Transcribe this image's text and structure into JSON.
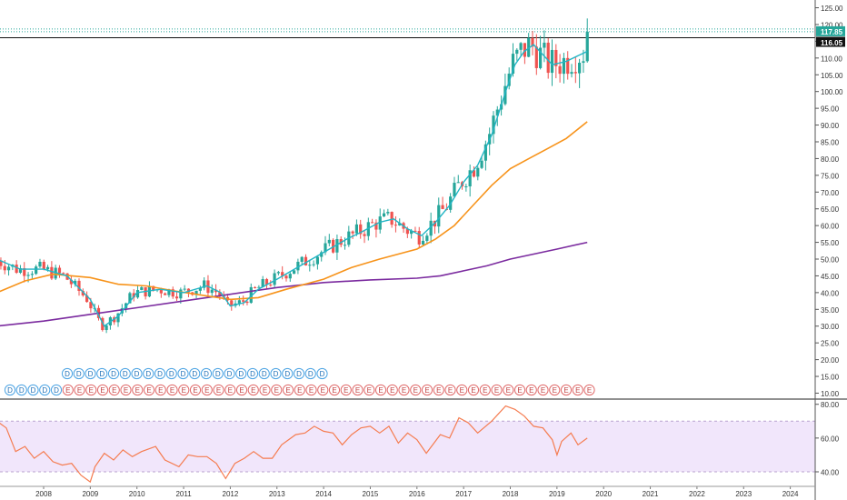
{
  "chart_data": {
    "type": "candlestick",
    "price_axis": {
      "ticks": [
        "10.00",
        "15.00",
        "20.00",
        "25.00",
        "30.00",
        "35.00",
        "40.00",
        "45.00",
        "50.00",
        "55.00",
        "60.00",
        "65.00",
        "70.00",
        "75.00",
        "80.00",
        "85.00",
        "90.00",
        "95.00",
        "100.00",
        "105.00",
        "110.00",
        "115.00",
        "120.00",
        "125.00"
      ],
      "range": [
        8.5,
        126.5
      ]
    },
    "price_labels": {
      "last": "117.85",
      "prev_close": "116.05"
    },
    "time_axis": [
      "2008",
      "2009",
      "2010",
      "2011",
      "2012",
      "2013",
      "2014",
      "2015",
      "2016",
      "2017",
      "2018",
      "2019",
      "2020",
      "2021",
      "2022",
      "2023",
      "2024"
    ],
    "colors": {
      "up": "#26a69a",
      "down": "#ef5350",
      "ma_fast": "#22b5c5",
      "ma_mid": "#f7931a",
      "ma_slow": "#7b2b9f",
      "rsi_line": "#f57c50",
      "rsi_band": "#f1e6fb"
    },
    "dividend_marker": "D",
    "earnings_marker": "E",
    "ma_slow": [
      [
        2007.0,
        30
      ],
      [
        2008.0,
        31.5
      ],
      [
        2009.0,
        33.5
      ],
      [
        2010.0,
        35.5
      ],
      [
        2011.0,
        37.5
      ],
      [
        2012.0,
        39.5
      ],
      [
        2013.0,
        41.5
      ],
      [
        2014.0,
        43
      ],
      [
        2015.0,
        43.8
      ],
      [
        2016.0,
        44.3
      ],
      [
        2016.5,
        45
      ],
      [
        2017.0,
        46.5
      ],
      [
        2017.5,
        48
      ],
      [
        2018.0,
        50
      ],
      [
        2018.5,
        51.5
      ],
      [
        2019.0,
        53
      ],
      [
        2019.65,
        55
      ]
    ],
    "ma_mid": [
      [
        2007.0,
        40
      ],
      [
        2007.6,
        43.5
      ],
      [
        2008.2,
        45.5
      ],
      [
        2009.0,
        44.5
      ],
      [
        2009.6,
        42.5
      ],
      [
        2010.2,
        42
      ],
      [
        2010.8,
        40.5
      ],
      [
        2011.5,
        39
      ],
      [
        2012.0,
        38
      ],
      [
        2012.6,
        38.5
      ],
      [
        2013.2,
        41
      ],
      [
        2014.0,
        44
      ],
      [
        2014.6,
        47.5
      ],
      [
        2015.2,
        50
      ],
      [
        2016.0,
        53
      ],
      [
        2016.4,
        56
      ],
      [
        2016.8,
        60
      ],
      [
        2017.2,
        66
      ],
      [
        2017.6,
        72
      ],
      [
        2018.0,
        77
      ],
      [
        2018.4,
        80
      ],
      [
        2018.8,
        83
      ],
      [
        2019.2,
        86
      ],
      [
        2019.65,
        91
      ]
    ],
    "ma_fast": [
      [
        2007.0,
        50
      ],
      [
        2007.5,
        47
      ],
      [
        2008.0,
        47
      ],
      [
        2008.5,
        45
      ],
      [
        2009.0,
        38
      ],
      [
        2009.3,
        30
      ],
      [
        2009.6,
        33
      ],
      [
        2010.0,
        40
      ],
      [
        2010.5,
        41
      ],
      [
        2011.0,
        40
      ],
      [
        2011.5,
        42
      ],
      [
        2011.8,
        40
      ],
      [
        2012.0,
        36
      ],
      [
        2012.3,
        37
      ],
      [
        2012.6,
        41
      ],
      [
        2013.0,
        44
      ],
      [
        2013.5,
        48
      ],
      [
        2014.0,
        52
      ],
      [
        2014.5,
        56
      ],
      [
        2014.8,
        58
      ],
      [
        2015.2,
        61
      ],
      [
        2015.5,
        62
      ],
      [
        2015.8,
        59
      ],
      [
        2016.1,
        57
      ],
      [
        2016.4,
        61
      ],
      [
        2016.7,
        66
      ],
      [
        2017.0,
        73
      ],
      [
        2017.3,
        78
      ],
      [
        2017.6,
        87
      ],
      [
        2017.9,
        100
      ],
      [
        2018.1,
        108
      ],
      [
        2018.3,
        112
      ],
      [
        2018.5,
        114
      ],
      [
        2018.7,
        111
      ],
      [
        2018.9,
        108
      ],
      [
        2019.2,
        109
      ],
      [
        2019.5,
        111
      ],
      [
        2019.65,
        112
      ]
    ],
    "rsi": [
      [
        2007.0,
        70
      ],
      [
        2007.2,
        66
      ],
      [
        2007.4,
        52
      ],
      [
        2007.6,
        55
      ],
      [
        2007.8,
        48
      ],
      [
        2008.0,
        52
      ],
      [
        2008.2,
        46
      ],
      [
        2008.4,
        44
      ],
      [
        2008.6,
        45
      ],
      [
        2008.8,
        38
      ],
      [
        2009.0,
        34
      ],
      [
        2009.1,
        43
      ],
      [
        2009.3,
        51
      ],
      [
        2009.5,
        47
      ],
      [
        2009.7,
        53
      ],
      [
        2009.9,
        49
      ],
      [
        2010.1,
        52
      ],
      [
        2010.4,
        55
      ],
      [
        2010.6,
        47
      ],
      [
        2010.9,
        43
      ],
      [
        2011.1,
        50
      ],
      [
        2011.3,
        49
      ],
      [
        2011.5,
        49
      ],
      [
        2011.7,
        45
      ],
      [
        2011.9,
        36
      ],
      [
        2012.1,
        45
      ],
      [
        2012.3,
        48
      ],
      [
        2012.5,
        52
      ],
      [
        2012.7,
        48
      ],
      [
        2012.9,
        48
      ],
      [
        2013.1,
        56
      ],
      [
        2013.4,
        62
      ],
      [
        2013.6,
        63
      ],
      [
        2013.8,
        67
      ],
      [
        2014.0,
        64
      ],
      [
        2014.2,
        63
      ],
      [
        2014.4,
        56
      ],
      [
        2014.6,
        62
      ],
      [
        2014.8,
        66
      ],
      [
        2015.0,
        67
      ],
      [
        2015.2,
        63
      ],
      [
        2015.4,
        67
      ],
      [
        2015.6,
        57
      ],
      [
        2015.8,
        63
      ],
      [
        2016.0,
        59
      ],
      [
        2016.2,
        51
      ],
      [
        2016.5,
        62
      ],
      [
        2016.7,
        60
      ],
      [
        2016.9,
        72
      ],
      [
        2017.1,
        69
      ],
      [
        2017.3,
        63
      ],
      [
        2017.6,
        70
      ],
      [
        2017.9,
        79
      ],
      [
        2018.1,
        77
      ],
      [
        2018.3,
        73
      ],
      [
        2018.5,
        67
      ],
      [
        2018.7,
        66
      ],
      [
        2018.9,
        59
      ],
      [
        2019.0,
        50
      ],
      [
        2019.1,
        58
      ],
      [
        2019.3,
        63
      ],
      [
        2019.45,
        56
      ],
      [
        2019.65,
        60
      ]
    ],
    "rsi_axis": {
      "ticks": [
        "40.00",
        "60.00",
        "80.00"
      ],
      "range": [
        33,
        82
      ],
      "band": [
        40,
        70
      ]
    }
  }
}
